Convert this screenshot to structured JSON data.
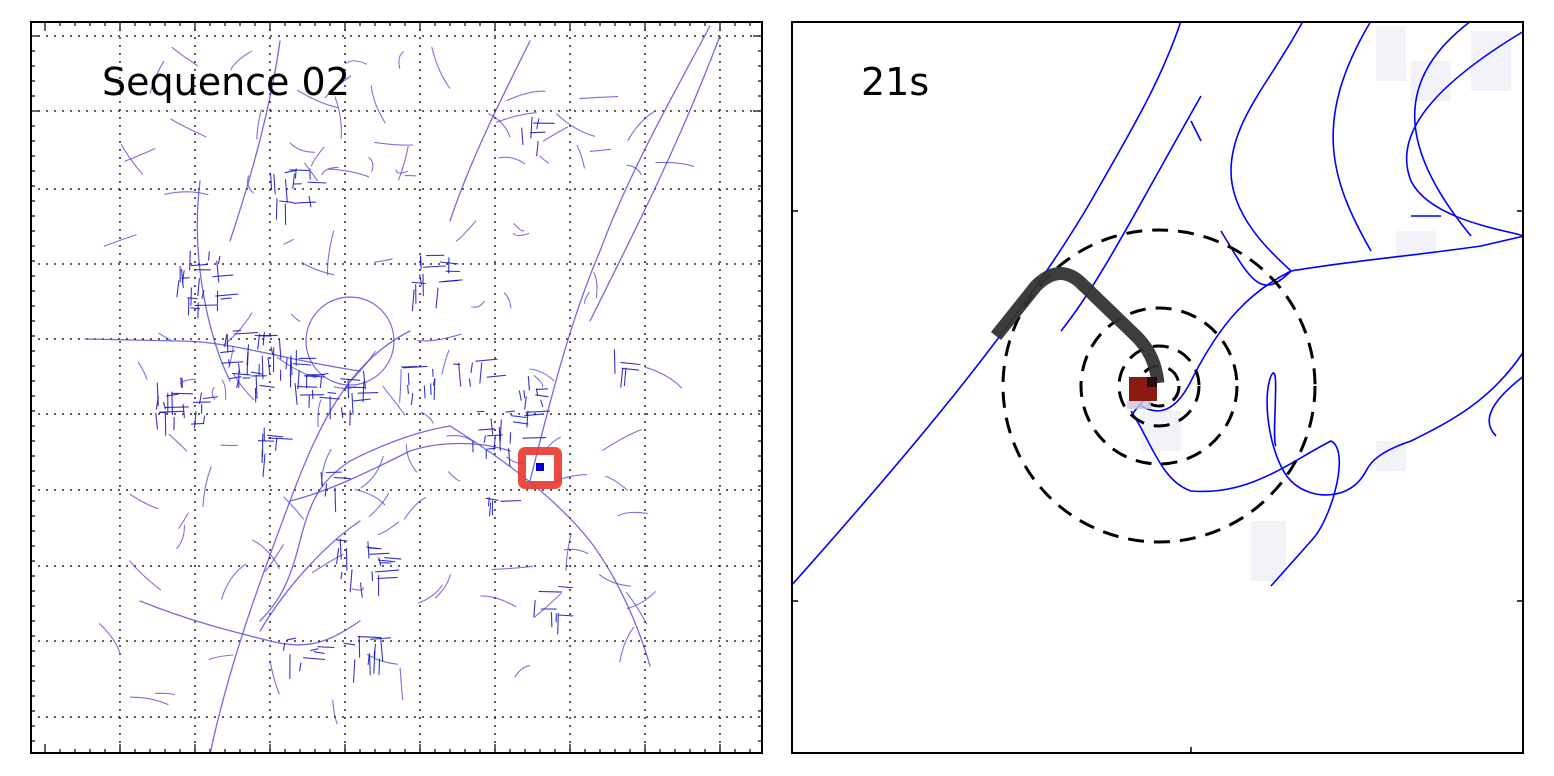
{
  "overview_map": {
    "label": "Sequence 02",
    "road_color": "#0000cc",
    "marker_color": "#e8392c"
  },
  "detail_map": {
    "label": "21s",
    "road_color": "#0000ff",
    "trajectory_color": "#333333",
    "vehicle_color": "#8b1a10",
    "range_ring_style": "dashed",
    "range_ring_count": 4
  }
}
